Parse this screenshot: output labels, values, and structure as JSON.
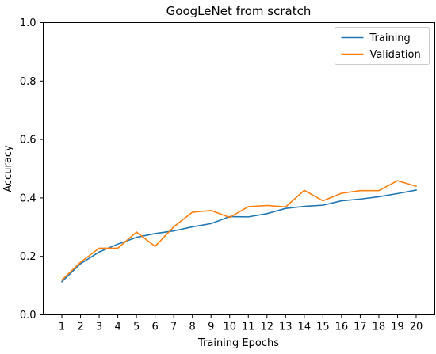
{
  "chart_data": {
    "type": "line",
    "title": "GoogLeNet from scratch",
    "xlabel": "Training Epochs",
    "ylabel": "Accuracy",
    "x": [
      1,
      2,
      3,
      4,
      5,
      6,
      7,
      8,
      9,
      10,
      11,
      12,
      13,
      14,
      15,
      16,
      17,
      18,
      19,
      20
    ],
    "xticks": [
      "1",
      "2",
      "3",
      "4",
      "5",
      "6",
      "7",
      "8",
      "9",
      "10",
      "11",
      "12",
      "13",
      "14",
      "15",
      "16",
      "17",
      "18",
      "19",
      "20"
    ],
    "ylim": [
      0,
      1
    ],
    "yticks": [
      "0.0",
      "0.2",
      "0.4",
      "0.6",
      "0.8",
      "1.0"
    ],
    "grid": false,
    "legend_position": "top-right",
    "series": [
      {
        "name": "Training",
        "color": "#1f77b4",
        "values": [
          0.113,
          0.175,
          0.215,
          0.242,
          0.265,
          0.278,
          0.287,
          0.301,
          0.312,
          0.336,
          0.335,
          0.346,
          0.364,
          0.371,
          0.375,
          0.39,
          0.396,
          0.404,
          0.415,
          0.427
        ]
      },
      {
        "name": "Validation",
        "color": "#ff7f0e",
        "values": [
          0.119,
          0.18,
          0.228,
          0.228,
          0.283,
          0.234,
          0.301,
          0.351,
          0.357,
          0.333,
          0.37,
          0.374,
          0.369,
          0.426,
          0.39,
          0.416,
          0.425,
          0.425,
          0.459,
          0.44
        ]
      }
    ]
  }
}
